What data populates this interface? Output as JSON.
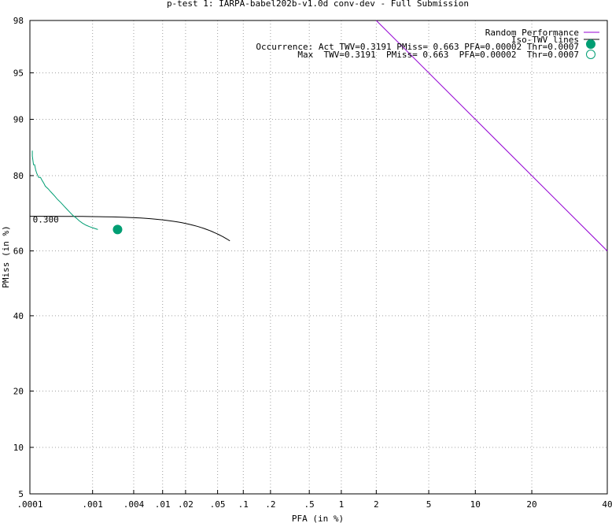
{
  "chart_data": {
    "type": "line",
    "title": "p-test 1: IARPA-babel202b-v1.0d conv-dev - Full Submission",
    "xlabel": "PFA (in %)",
    "ylabel": "PMiss (in %)",
    "x_scale": "normal-deviate",
    "y_scale": "normal-deviate",
    "xlim": [
      0.0001,
      40
    ],
    "ylim": [
      5,
      98
    ],
    "grid": true,
    "x_ticks": [
      {
        "label": ".0001",
        "value": 0.0001
      },
      {
        "label": ".001",
        "value": 0.001
      },
      {
        "label": ".004",
        "value": 0.004
      },
      {
        "label": ".01",
        "value": 0.01
      },
      {
        "label": ".02",
        "value": 0.02
      },
      {
        "label": ".05",
        "value": 0.05
      },
      {
        "label": ".1",
        "value": 0.1
      },
      {
        "label": ".2",
        "value": 0.2
      },
      {
        "label": ".5",
        "value": 0.5
      },
      {
        "label": "1",
        "value": 1
      },
      {
        "label": "2",
        "value": 2
      },
      {
        "label": "5",
        "value": 5
      },
      {
        "label": "10",
        "value": 10
      },
      {
        "label": "20",
        "value": 20
      },
      {
        "label": "40",
        "value": 40
      }
    ],
    "y_ticks": [
      {
        "label": "5",
        "value": 5
      },
      {
        "label": "10",
        "value": 10
      },
      {
        "label": "20",
        "value": 20
      },
      {
        "label": "40",
        "value": 40
      },
      {
        "label": "60",
        "value": 60
      },
      {
        "label": "80",
        "value": 80
      },
      {
        "label": "90",
        "value": 90
      },
      {
        "label": "95",
        "value": 95
      },
      {
        "label": "98",
        "value": 98
      }
    ],
    "legend_position": "top-right",
    "legend": [
      {
        "label": "Random Performance",
        "color": "#9400d3",
        "style": "line"
      },
      {
        "label": "Iso-TWV lines",
        "color": "#000000",
        "style": "line"
      },
      {
        "label": "Occurrence: Act  TWV=0.3191  PMiss= 0.663  PFA=0.00002  Thr=0.0007",
        "color": "#009e73",
        "style": "filled-circle"
      },
      {
        "label": "Max  TWV=0.3191  PMiss= 0.663  PFA=0.00002  Thr=0.0007",
        "color": "#009e73",
        "style": "open-circle"
      }
    ],
    "annotations": [
      {
        "text": "0.300",
        "x": 0.000105,
        "y": 69.1
      }
    ],
    "series": [
      {
        "name": "Random Performance",
        "color": "#9400d3",
        "points": [
          [
            2.0,
            98.0
          ],
          [
            40,
            60.0
          ]
        ]
      },
      {
        "name": "Iso-TWV lines",
        "color": "#000000",
        "points": [
          [
            0.0001,
            69.99
          ],
          [
            0.0002,
            69.98
          ],
          [
            0.0004,
            69.96
          ],
          [
            0.0007,
            69.93
          ],
          [
            0.001,
            69.9
          ],
          [
            0.0015,
            69.85
          ],
          [
            0.002,
            69.8
          ],
          [
            0.003,
            69.7
          ],
          [
            0.004,
            69.6
          ],
          [
            0.005,
            69.5
          ],
          [
            0.006,
            69.4
          ],
          [
            0.007,
            69.3
          ],
          [
            0.008,
            69.2
          ],
          [
            0.009,
            69.1
          ],
          [
            0.01,
            69.0
          ],
          [
            0.012,
            68.8
          ],
          [
            0.014,
            68.6
          ],
          [
            0.016,
            68.4
          ],
          [
            0.018,
            68.2
          ],
          [
            0.02,
            68.0
          ],
          [
            0.022,
            67.8
          ],
          [
            0.025,
            67.5
          ],
          [
            0.028,
            67.2
          ],
          [
            0.031,
            66.9
          ],
          [
            0.034,
            66.6
          ],
          [
            0.037,
            66.3
          ],
          [
            0.04,
            66.0
          ],
          [
            0.043,
            65.7
          ],
          [
            0.046,
            65.4
          ],
          [
            0.049,
            65.1
          ],
          [
            0.052,
            64.8
          ],
          [
            0.055,
            64.5
          ],
          [
            0.058,
            64.2
          ],
          [
            0.061,
            63.9
          ],
          [
            0.064,
            63.6
          ],
          [
            0.067,
            63.3
          ],
          [
            0.0699,
            63.01
          ]
        ]
      },
      {
        "name": "Occurrence DET",
        "color": "#009e73",
        "points": [
          [
            0.00011,
            85.0
          ],
          [
            0.00011,
            84.0
          ],
          [
            0.000113,
            83.0
          ],
          [
            0.000115,
            82.3
          ],
          [
            0.00012,
            82.3
          ],
          [
            0.000125,
            81.2
          ],
          [
            0.00013,
            80.5
          ],
          [
            0.00014,
            79.6
          ],
          [
            0.00015,
            79.6
          ],
          [
            0.00016,
            78.9
          ],
          [
            0.00017,
            78.3
          ],
          [
            0.00018,
            77.6
          ],
          [
            0.0002,
            77.0
          ],
          [
            0.00022,
            76.3
          ],
          [
            0.00025,
            75.4
          ],
          [
            0.00028,
            74.5
          ],
          [
            0.00032,
            73.6
          ],
          [
            0.00036,
            72.7
          ],
          [
            0.0004,
            71.9
          ],
          [
            0.00045,
            71.0
          ],
          [
            0.0005,
            70.2
          ],
          [
            0.00056,
            69.5
          ],
          [
            0.00062,
            68.8
          ],
          [
            0.0007,
            68.1
          ],
          [
            0.0008,
            67.5
          ],
          [
            0.0009,
            67.1
          ],
          [
            0.001,
            66.8
          ],
          [
            0.0012,
            66.3
          ]
        ]
      }
    ],
    "markers": [
      {
        "name": "Act",
        "x": 0.00235,
        "y": 66.3,
        "color": "#009e73",
        "fill": "filled"
      }
    ]
  }
}
